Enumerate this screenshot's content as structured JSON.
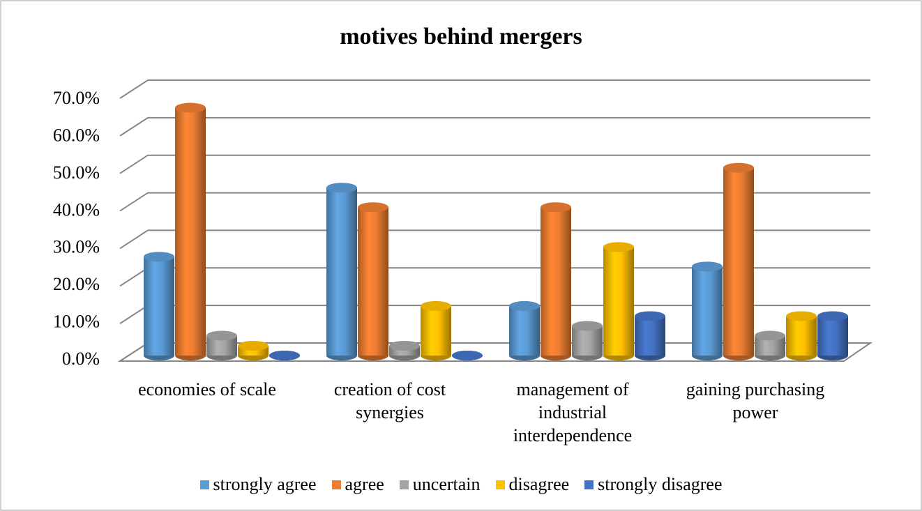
{
  "chart_data": {
    "type": "bar3d",
    "title": "motives behind mergers",
    "categories": [
      "economies of scale",
      "creation of cost synergies",
      "management of industrial interdependence",
      "gaining purchasing power"
    ],
    "series": [
      {
        "name": "strongly agree",
        "color": "#5b9bd5",
        "values": [
          26.3,
          44.7,
          13.2,
          23.7
        ]
      },
      {
        "name": "agree",
        "color": "#ed7d31",
        "values": [
          66,
          39.5,
          39.5,
          50
        ]
      },
      {
        "name": "uncertain",
        "color": "#a5a5a5",
        "values": [
          5.3,
          2.6,
          7.9,
          5.3
        ]
      },
      {
        "name": "disagree",
        "color": "#ffc000",
        "values": [
          2.6,
          13.2,
          28.9,
          10.5
        ]
      },
      {
        "name": "strongly disagree",
        "color": "#4472c4",
        "values": [
          0,
          0,
          10.5,
          10.5
        ]
      }
    ],
    "ylim": [
      0,
      70
    ],
    "yticks": [
      {
        "value": 0,
        "label": "0.0%"
      },
      {
        "value": 10,
        "label": "10.0%"
      },
      {
        "value": 20,
        "label": "20.0%"
      },
      {
        "value": 30,
        "label": "30.0%"
      },
      {
        "value": 40,
        "label": "40.0%"
      },
      {
        "value": 50,
        "label": "50.0%"
      },
      {
        "value": 60,
        "label": "60.0%"
      },
      {
        "value": 70,
        "label": "70.0%"
      }
    ],
    "grid": true,
    "legend": "bottom"
  }
}
